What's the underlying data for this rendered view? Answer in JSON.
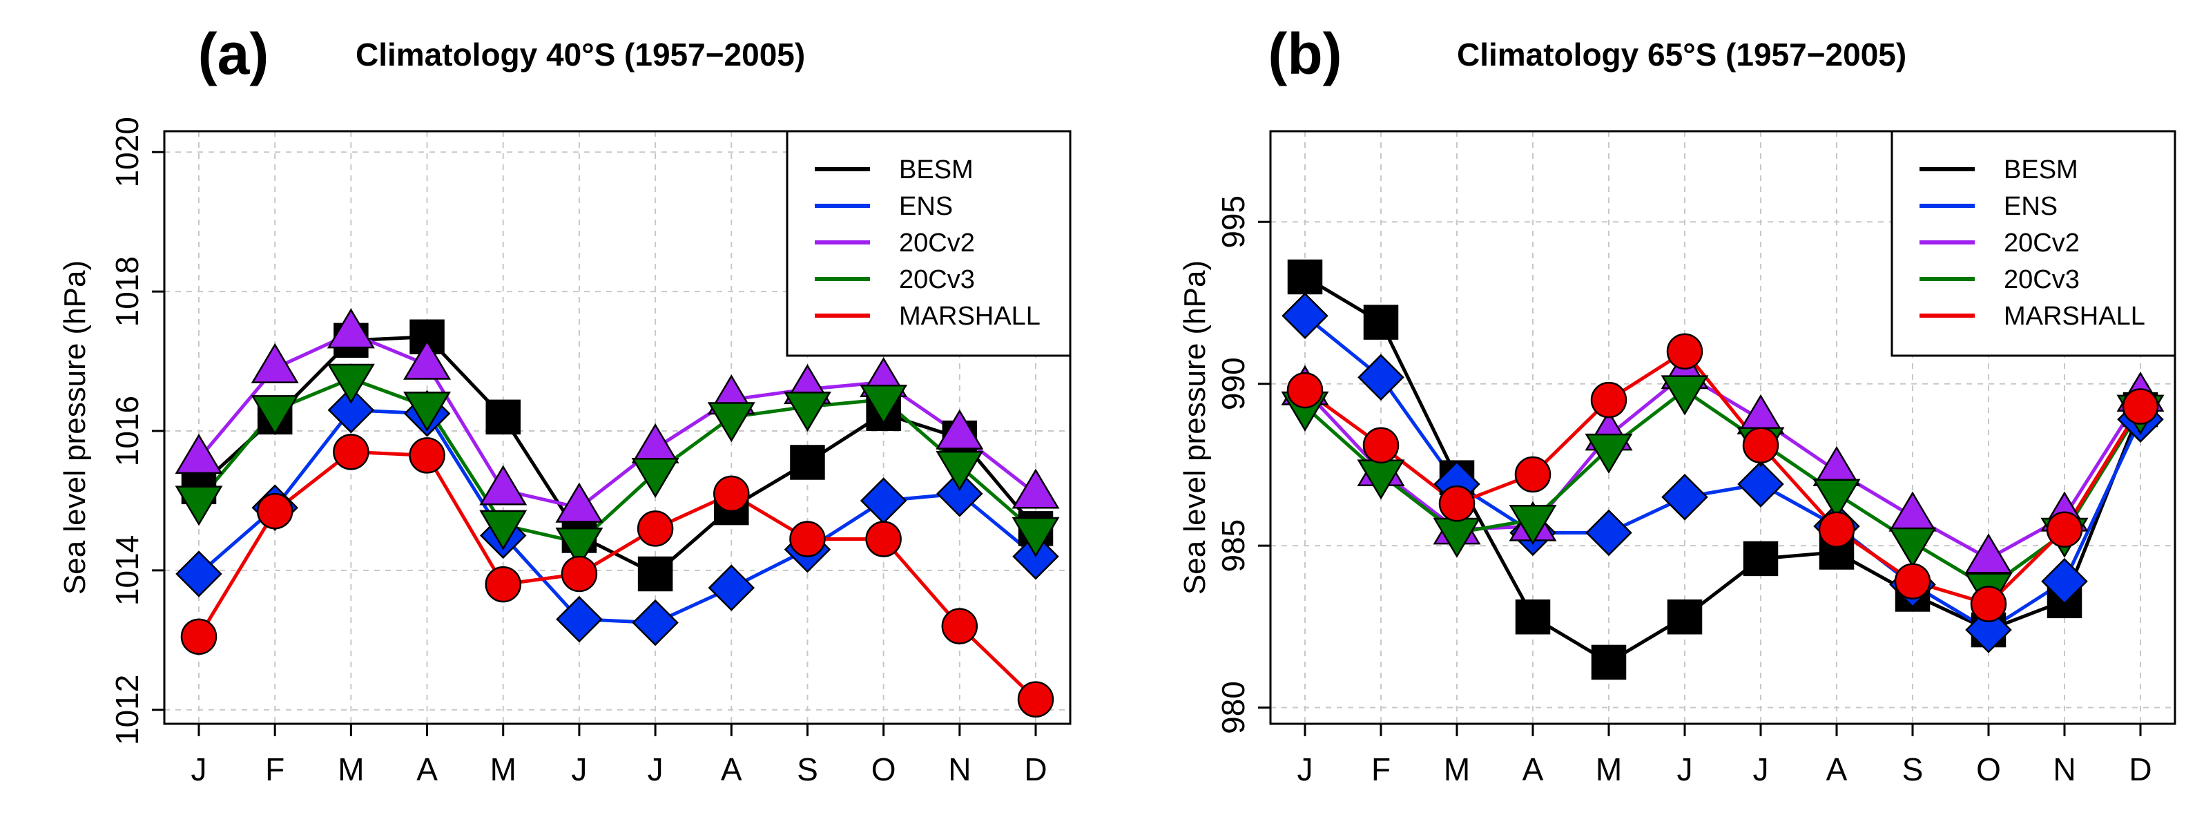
{
  "chart_data": [
    {
      "type": "line",
      "panel_label": "(a)",
      "title": "Climatology 40°S (1957−2005)",
      "xlabel": "",
      "ylabel": "Sea level pressure (hPa)",
      "categories": [
        "J",
        "F",
        "M",
        "A",
        "M",
        "J",
        "J",
        "A",
        "S",
        "O",
        "N",
        "D"
      ],
      "ylim": [
        1011.8,
        1020.3
      ],
      "yticks": [
        1012,
        1014,
        1016,
        1018,
        1020
      ],
      "ytick_labels": [
        "1012",
        "1014",
        "1016",
        "1018",
        "1020"
      ],
      "grid": true,
      "legend_position": "top-right",
      "series": [
        {
          "name": "BESM",
          "color": "#000000",
          "marker": "square",
          "values": [
            1015.2,
            1016.2,
            1017.3,
            1017.35,
            1016.2,
            1014.5,
            1013.95,
            1014.9,
            1015.55,
            1016.25,
            1015.9,
            1014.6
          ]
        },
        {
          "name": "ENS",
          "color": "#0033ee",
          "marker": "diamond",
          "values": [
            1013.95,
            1014.9,
            1016.3,
            1016.25,
            1014.5,
            1013.3,
            1013.25,
            1013.75,
            1014.3,
            1015.0,
            1015.1,
            1014.2
          ]
        },
        {
          "name": "20Cv2",
          "color": "#a020f0",
          "marker": "triangle-up",
          "values": [
            1015.6,
            1016.9,
            1017.4,
            1016.95,
            1015.15,
            1014.9,
            1015.75,
            1016.45,
            1016.6,
            1016.7,
            1015.95,
            1015.1
          ]
        },
        {
          "name": "20Cv3",
          "color": "#007700",
          "marker": "triangle-down",
          "values": [
            1015.0,
            1016.3,
            1016.75,
            1016.35,
            1014.65,
            1014.4,
            1015.4,
            1016.2,
            1016.35,
            1016.45,
            1015.5,
            1014.55
          ]
        },
        {
          "name": "MARSHALL",
          "color": "#ee0000",
          "marker": "circle",
          "values": [
            1013.05,
            1014.85,
            1015.7,
            1015.65,
            1013.8,
            1013.95,
            1014.6,
            1015.1,
            1014.45,
            1014.45,
            1013.2,
            1012.15
          ]
        }
      ]
    },
    {
      "type": "line",
      "panel_label": "(b)",
      "title": "Climatology 65°S (1957−2005)",
      "xlabel": "",
      "ylabel": "Sea level pressure (hPa)",
      "categories": [
        "J",
        "F",
        "M",
        "A",
        "M",
        "J",
        "J",
        "A",
        "S",
        "O",
        "N",
        "D"
      ],
      "ylim": [
        979.5,
        997.8
      ],
      "yticks": [
        980,
        985,
        990,
        995
      ],
      "ytick_labels": [
        "980",
        "985",
        "990",
        "995"
      ],
      "grid": true,
      "legend_position": "top-right",
      "series": [
        {
          "name": "BESM",
          "color": "#000000",
          "marker": "square",
          "values": [
            993.3,
            991.9,
            987.1,
            982.8,
            981.4,
            982.8,
            984.6,
            984.8,
            983.5,
            982.4,
            983.3,
            989.2
          ]
        },
        {
          "name": "ENS",
          "color": "#0033ee",
          "marker": "diamond",
          "values": [
            992.1,
            990.2,
            986.9,
            985.4,
            985.4,
            986.5,
            986.9,
            985.6,
            983.8,
            982.4,
            983.9,
            988.9
          ]
        },
        {
          "name": "20Cv2",
          "color": "#a020f0",
          "marker": "triangle-up",
          "values": [
            989.8,
            987.3,
            985.5,
            985.6,
            988.4,
            990.3,
            988.9,
            987.3,
            985.9,
            984.6,
            985.9,
            989.6
          ]
        },
        {
          "name": "20Cv3",
          "color": "#007700",
          "marker": "triangle-down",
          "values": [
            989.3,
            987.2,
            985.4,
            985.8,
            988.0,
            989.8,
            988.2,
            986.6,
            985.1,
            983.7,
            985.4,
            989.2
          ]
        },
        {
          "name": "MARSHALL",
          "color": "#ee0000",
          "marker": "circle",
          "values": [
            989.8,
            988.1,
            986.3,
            987.2,
            989.5,
            991.0,
            988.1,
            985.5,
            983.9,
            983.2,
            985.5,
            989.3
          ]
        }
      ]
    }
  ]
}
